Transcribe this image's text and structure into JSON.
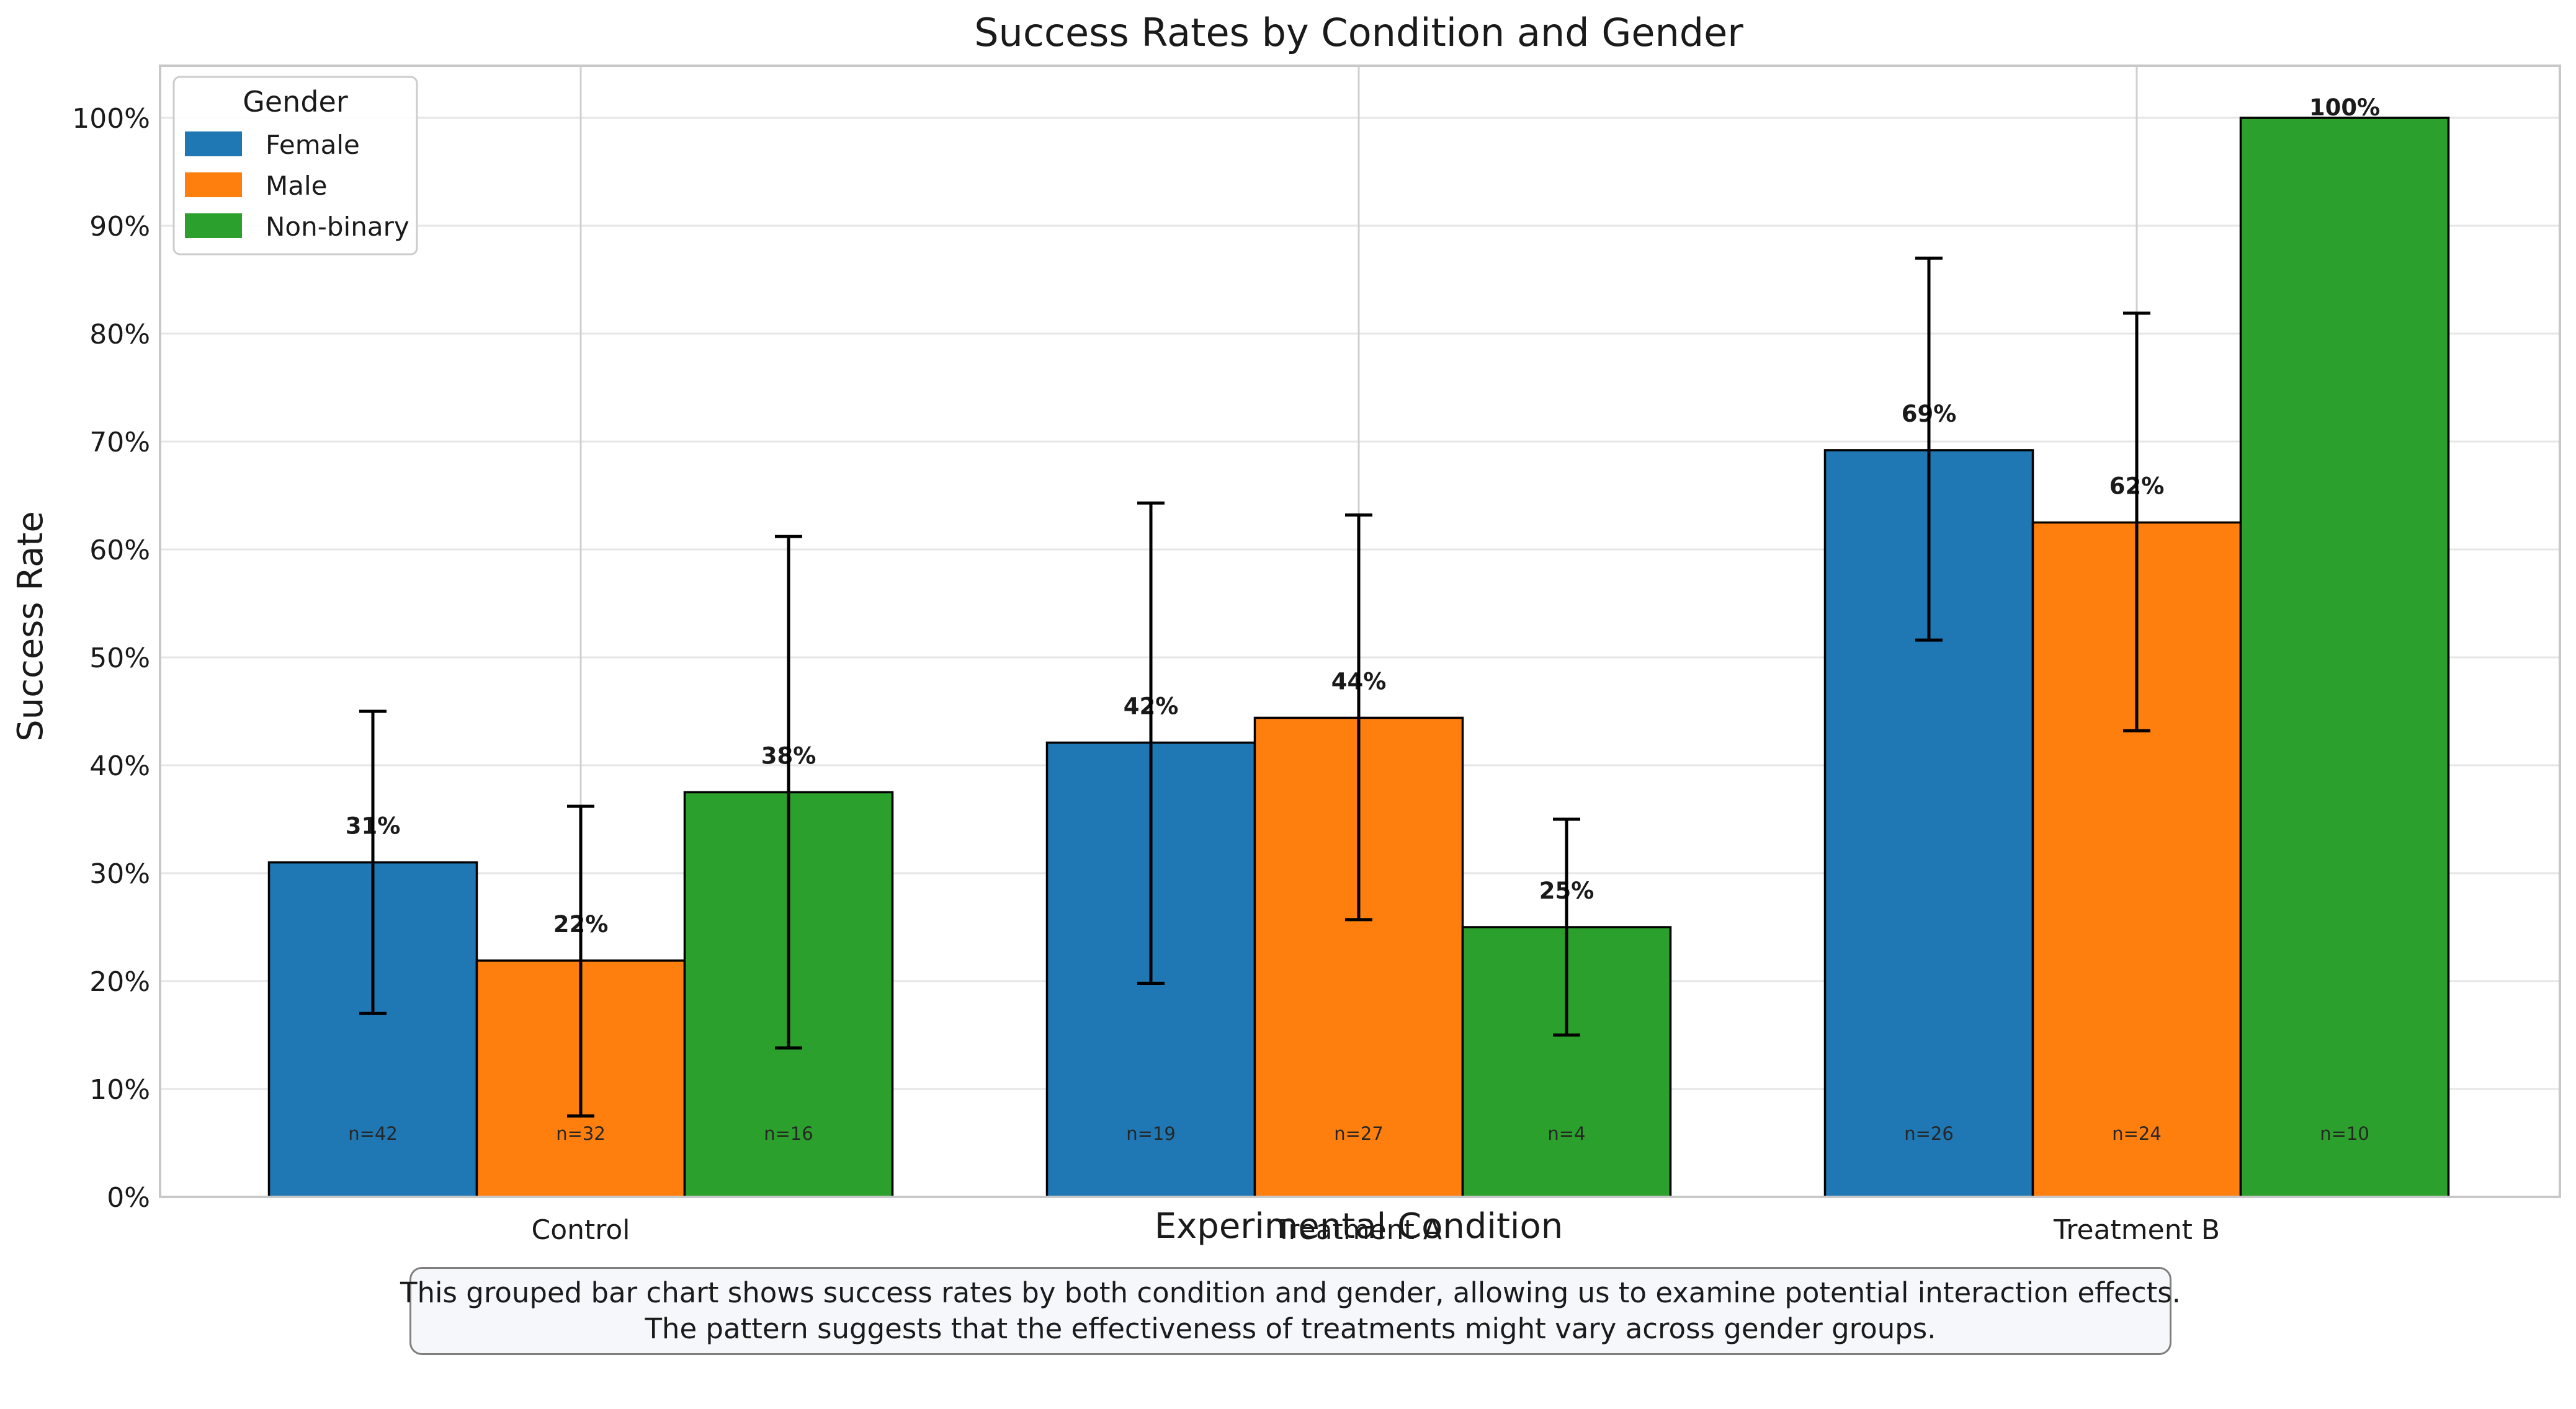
{
  "chart_data": {
    "type": "bar",
    "title": "Success Rates by Condition and Gender",
    "xlabel": "Experimental Condition",
    "ylabel": "Success Rate",
    "ylim": [
      0,
      1.05
    ],
    "yticks": [
      "0%",
      "10%",
      "20%",
      "30%",
      "40%",
      "50%",
      "60%",
      "70%",
      "80%",
      "90%",
      "100%"
    ],
    "grid": true,
    "categories": [
      "Control",
      "Treatment A",
      "Treatment B"
    ],
    "legend": {
      "title": "Gender",
      "placement": "upper-left"
    },
    "series": [
      {
        "name": "Female",
        "color": "#1f77b4",
        "values": [
          0.31,
          0.421,
          0.692
        ],
        "labels": [
          "31%",
          "42%",
          "69%"
        ],
        "err_low": [
          0.17,
          0.198,
          0.516
        ],
        "err_high": [
          0.45,
          0.643,
          0.87
        ],
        "n_labels": [
          "n=42",
          "n=19",
          "n=26"
        ]
      },
      {
        "name": "Male",
        "color": "#ff7f0e",
        "values": [
          0.219,
          0.444,
          0.625
        ],
        "labels": [
          "22%",
          "44%",
          "62%"
        ],
        "err_low": [
          0.075,
          0.257,
          0.432
        ],
        "err_high": [
          0.362,
          0.632,
          0.819
        ],
        "n_labels": [
          "n=32",
          "n=27",
          "n=24"
        ]
      },
      {
        "name": "Non-binary",
        "color": "#2ca02c",
        "values": [
          0.375,
          0.25,
          1.0
        ],
        "labels": [
          "38%",
          "25%",
          "100%"
        ],
        "err_low": [
          0.138,
          0.15,
          null
        ],
        "err_high": [
          0.612,
          0.35,
          null
        ],
        "n_labels": [
          "n=16",
          "n=4",
          "n=10"
        ]
      }
    ]
  },
  "caption": {
    "line1": "This grouped bar chart shows success rates by both condition and gender, allowing us to examine potential interaction effects.",
    "line2": "The pattern suggests that the effectiveness of treatments might vary across gender groups."
  }
}
